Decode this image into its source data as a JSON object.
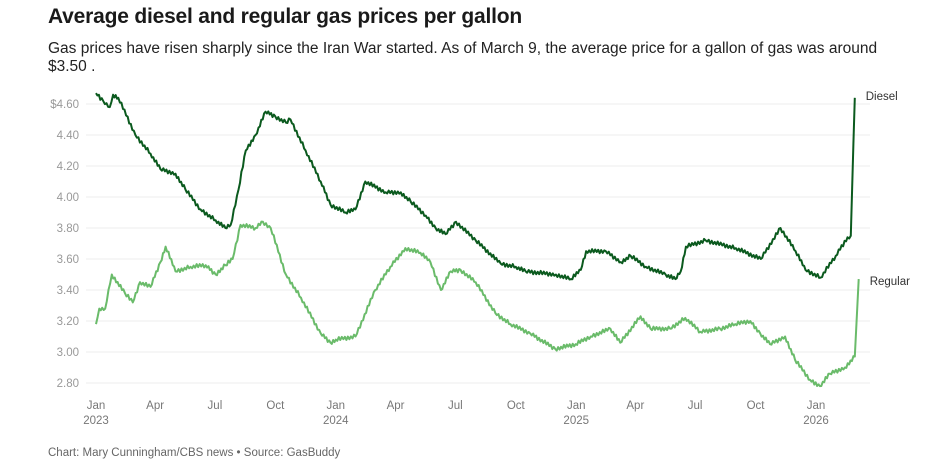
{
  "header": {
    "title": "Average diesel and regular gas prices per gallon",
    "subtitle": "Gas prices have risen sharply since the Iran War started. As of March 9, the average price for a gallon of gas was around $3.50 ."
  },
  "footer": {
    "credit": "Chart: Mary Cunningham/CBS news • Source: GasBuddy"
  },
  "chart_data": {
    "type": "line",
    "title": "Average diesel and regular gas prices per gallon",
    "xlabel": "",
    "ylabel": "",
    "ylim": [
      2.7,
      4.7
    ],
    "xlim": [
      "2023-01-01",
      "2026-03-09"
    ],
    "grid": true,
    "legend": "direct-labels-right",
    "y_ticks": [
      {
        "value": 2.8,
        "label": "2.80"
      },
      {
        "value": 3.0,
        "label": "3.00"
      },
      {
        "value": 3.2,
        "label": "3.20"
      },
      {
        "value": 3.4,
        "label": "3.40"
      },
      {
        "value": 3.6,
        "label": "3.60"
      },
      {
        "value": 3.8,
        "label": "3.80"
      },
      {
        "value": 4.0,
        "label": "4.00"
      },
      {
        "value": 4.2,
        "label": "4.20"
      },
      {
        "value": 4.4,
        "label": "4.40"
      },
      {
        "value": 4.6,
        "label": "$4.60"
      }
    ],
    "x_ticks": [
      {
        "date": "2023-01-01",
        "label": "Jan",
        "sublabel": "2023"
      },
      {
        "date": "2023-04-01",
        "label": "Apr",
        "sublabel": ""
      },
      {
        "date": "2023-07-01",
        "label": "Jul",
        "sublabel": ""
      },
      {
        "date": "2023-10-01",
        "label": "Oct",
        "sublabel": ""
      },
      {
        "date": "2024-01-01",
        "label": "Jan",
        "sublabel": "2024"
      },
      {
        "date": "2024-04-01",
        "label": "Apr",
        "sublabel": ""
      },
      {
        "date": "2024-07-01",
        "label": "Jul",
        "sublabel": ""
      },
      {
        "date": "2024-10-01",
        "label": "Oct",
        "sublabel": ""
      },
      {
        "date": "2025-01-01",
        "label": "Jan",
        "sublabel": "2025"
      },
      {
        "date": "2025-04-01",
        "label": "Apr",
        "sublabel": ""
      },
      {
        "date": "2025-07-01",
        "label": "Jul",
        "sublabel": ""
      },
      {
        "date": "2025-10-01",
        "label": "Oct",
        "sublabel": ""
      },
      {
        "date": "2026-01-01",
        "label": "Jan",
        "sublabel": "2026"
      }
    ],
    "series": [
      {
        "name": "Diesel",
        "color": "#0b5a1e",
        "points": [
          [
            "2023-01-01",
            4.67
          ],
          [
            "2023-01-12",
            4.62
          ],
          [
            "2023-01-22",
            4.58
          ],
          [
            "2023-01-27",
            4.66
          ],
          [
            "2023-02-04",
            4.64
          ],
          [
            "2023-03-02",
            4.4
          ],
          [
            "2023-03-25",
            4.28
          ],
          [
            "2023-04-09",
            4.18
          ],
          [
            "2023-05-02",
            4.15
          ],
          [
            "2023-05-17",
            4.05
          ],
          [
            "2023-06-09",
            3.92
          ],
          [
            "2023-07-02",
            3.85
          ],
          [
            "2023-07-17",
            3.8
          ],
          [
            "2023-07-25",
            3.82
          ],
          [
            "2023-08-06",
            4.05
          ],
          [
            "2023-08-17",
            4.3
          ],
          [
            "2023-09-01",
            4.4
          ],
          [
            "2023-09-16",
            4.55
          ],
          [
            "2023-10-01",
            4.52
          ],
          [
            "2023-10-17",
            4.48
          ],
          [
            "2023-10-24",
            4.5
          ],
          [
            "2023-11-16",
            4.3
          ],
          [
            "2023-12-09",
            4.1
          ],
          [
            "2023-12-24",
            3.95
          ],
          [
            "2024-01-16",
            3.9
          ],
          [
            "2024-01-31",
            3.92
          ],
          [
            "2024-02-15",
            4.1
          ],
          [
            "2024-03-17",
            4.03
          ],
          [
            "2024-04-09",
            4.03
          ],
          [
            "2024-04-24",
            3.97
          ],
          [
            "2024-05-17",
            3.88
          ],
          [
            "2024-06-01",
            3.8
          ],
          [
            "2024-06-16",
            3.76
          ],
          [
            "2024-07-02",
            3.84
          ],
          [
            "2024-08-01",
            3.72
          ],
          [
            "2024-09-08",
            3.57
          ],
          [
            "2024-10-01",
            3.55
          ],
          [
            "2024-10-16",
            3.52
          ],
          [
            "2024-12-01",
            3.5
          ],
          [
            "2024-12-24",
            3.47
          ],
          [
            "2025-01-08",
            3.53
          ],
          [
            "2025-01-16",
            3.65
          ],
          [
            "2025-02-15",
            3.65
          ],
          [
            "2025-03-10",
            3.58
          ],
          [
            "2025-03-25",
            3.62
          ],
          [
            "2025-04-17",
            3.55
          ],
          [
            "2025-05-17",
            3.5
          ],
          [
            "2025-06-01",
            3.47
          ],
          [
            "2025-06-09",
            3.52
          ],
          [
            "2025-06-17",
            3.68
          ],
          [
            "2025-07-17",
            3.72
          ],
          [
            "2025-09-01",
            3.67
          ],
          [
            "2025-10-09",
            3.6
          ],
          [
            "2025-11-08",
            3.8
          ],
          [
            "2025-12-01",
            3.65
          ],
          [
            "2025-12-16",
            3.53
          ],
          [
            "2026-01-08",
            3.48
          ],
          [
            "2026-01-31",
            3.62
          ],
          [
            "2026-02-18",
            3.74
          ],
          [
            "2026-02-23",
            3.75
          ],
          [
            "2026-03-01",
            4.64
          ]
        ]
      },
      {
        "name": "Regular",
        "color": "#6abb6a",
        "points": [
          [
            "2023-01-01",
            3.18
          ],
          [
            "2023-01-06",
            3.28
          ],
          [
            "2023-01-15",
            3.28
          ],
          [
            "2023-01-25",
            3.5
          ],
          [
            "2023-02-14",
            3.38
          ],
          [
            "2023-02-26",
            3.32
          ],
          [
            "2023-03-09",
            3.45
          ],
          [
            "2023-03-25",
            3.42
          ],
          [
            "2023-04-09",
            3.58
          ],
          [
            "2023-04-17",
            3.68
          ],
          [
            "2023-05-02",
            3.52
          ],
          [
            "2023-05-25",
            3.55
          ],
          [
            "2023-06-17",
            3.56
          ],
          [
            "2023-07-02",
            3.5
          ],
          [
            "2023-07-17",
            3.56
          ],
          [
            "2023-07-28",
            3.6
          ],
          [
            "2023-08-09",
            3.82
          ],
          [
            "2023-09-01",
            3.8
          ],
          [
            "2023-09-12",
            3.84
          ],
          [
            "2023-09-24",
            3.8
          ],
          [
            "2023-10-17",
            3.5
          ],
          [
            "2023-11-09",
            3.35
          ],
          [
            "2023-12-09",
            3.12
          ],
          [
            "2023-12-24",
            3.06
          ],
          [
            "2024-01-01",
            3.08
          ],
          [
            "2024-01-31",
            3.1
          ],
          [
            "2024-03-01",
            3.4
          ],
          [
            "2024-03-24",
            3.55
          ],
          [
            "2024-04-16",
            3.67
          ],
          [
            "2024-05-09",
            3.64
          ],
          [
            "2024-05-24",
            3.58
          ],
          [
            "2024-06-09",
            3.4
          ],
          [
            "2024-06-24",
            3.52
          ],
          [
            "2024-07-09",
            3.53
          ],
          [
            "2024-08-01",
            3.45
          ],
          [
            "2024-08-31",
            3.25
          ],
          [
            "2024-09-23",
            3.18
          ],
          [
            "2024-10-23",
            3.12
          ],
          [
            "2024-11-30",
            3.02
          ],
          [
            "2024-12-31",
            3.05
          ],
          [
            "2025-01-23",
            3.1
          ],
          [
            "2025-02-22",
            3.15
          ],
          [
            "2025-03-09",
            3.06
          ],
          [
            "2025-04-09",
            3.23
          ],
          [
            "2025-04-24",
            3.15
          ],
          [
            "2025-05-24",
            3.15
          ],
          [
            "2025-06-16",
            3.22
          ],
          [
            "2025-07-09",
            3.13
          ],
          [
            "2025-08-08",
            3.15
          ],
          [
            "2025-08-31",
            3.18
          ],
          [
            "2025-09-23",
            3.2
          ],
          [
            "2025-10-08",
            3.12
          ],
          [
            "2025-10-23",
            3.05
          ],
          [
            "2025-11-15",
            3.1
          ],
          [
            "2025-11-30",
            2.95
          ],
          [
            "2025-12-23",
            2.82
          ],
          [
            "2026-01-07",
            2.78
          ],
          [
            "2026-01-22",
            2.86
          ],
          [
            "2026-02-14",
            2.9
          ],
          [
            "2026-03-01",
            2.97
          ],
          [
            "2026-03-07",
            3.47
          ]
        ]
      }
    ]
  }
}
